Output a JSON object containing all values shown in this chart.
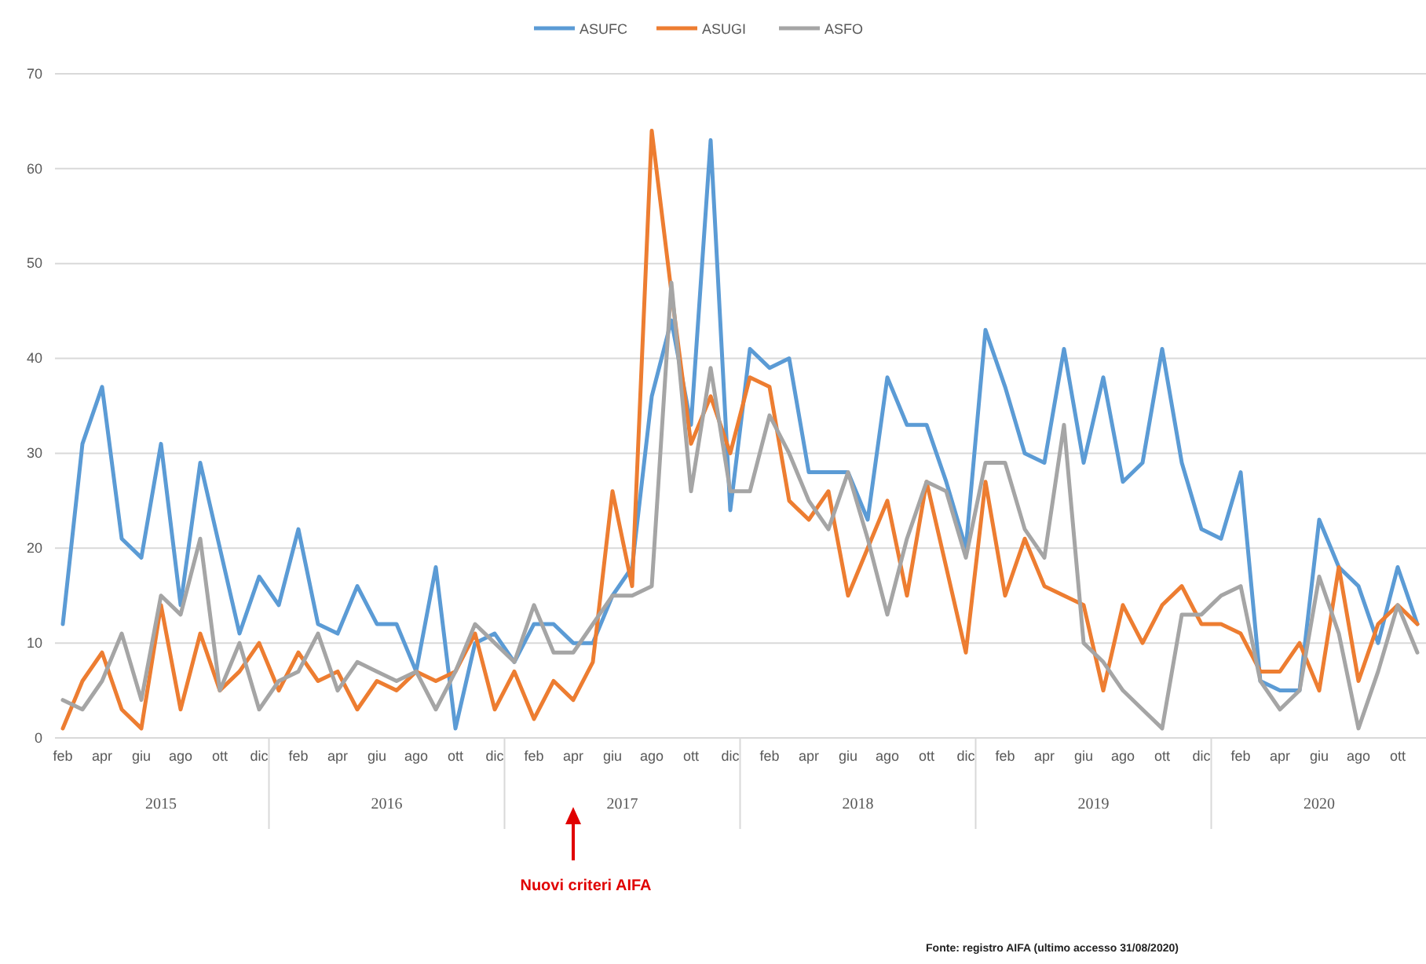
{
  "chart_data": {
    "type": "line",
    "categories": [
      "feb",
      null,
      "apr",
      null,
      "giu",
      null,
      "ago",
      null,
      "ott",
      null,
      "dic",
      null,
      "feb",
      null,
      "apr",
      null,
      "giu",
      null,
      "ago",
      null,
      "ott",
      null,
      "dic",
      null,
      "feb",
      null,
      "apr",
      null,
      "giu",
      null,
      "ago",
      null,
      "ott",
      null,
      "dic",
      null,
      "feb",
      null,
      "apr",
      null,
      "giu",
      null,
      "ago",
      null,
      "ott",
      null,
      "dic",
      null,
      "feb",
      null,
      "apr",
      null,
      "giu",
      null,
      "ago",
      null,
      "ott",
      null,
      "dic",
      null,
      "feb",
      null,
      "apr",
      null,
      "giu",
      null,
      "ago",
      null,
      "ott",
      null
    ],
    "series": [
      {
        "name": "ASUFC",
        "color": "#5b9bd5",
        "values": [
          12,
          31,
          37,
          21,
          19,
          31,
          14,
          29,
          20,
          11,
          17,
          14,
          22,
          12,
          11,
          16,
          12,
          12,
          7,
          18,
          1,
          10,
          11,
          8,
          12,
          12,
          10,
          10,
          15,
          18,
          36,
          44,
          33,
          63,
          24,
          41,
          39,
          40,
          28,
          28,
          28,
          23,
          38,
          33,
          33,
          27,
          20,
          43,
          37,
          30,
          29,
          41,
          29,
          38,
          27,
          29,
          41,
          29,
          22,
          21,
          28,
          6,
          5,
          5,
          23,
          18,
          16,
          10,
          18,
          12
        ]
      },
      {
        "name": "ASUGI",
        "color": "#ed7d31",
        "values": [
          1,
          6,
          9,
          3,
          1,
          14,
          3,
          11,
          5,
          7,
          10,
          5,
          9,
          6,
          7,
          3,
          6,
          5,
          7,
          6,
          7,
          11,
          3,
          7,
          2,
          6,
          4,
          8,
          26,
          16,
          64,
          47,
          31,
          36,
          30,
          38,
          37,
          25,
          23,
          26,
          15,
          20,
          25,
          15,
          27,
          18,
          9,
          27,
          15,
          21,
          16,
          15,
          14,
          5,
          14,
          10,
          14,
          16,
          12,
          12,
          11,
          7,
          7,
          10,
          5,
          18,
          6,
          12,
          14,
          12
        ]
      },
      {
        "name": "ASFO",
        "color": "#a5a5a5",
        "values": [
          4,
          3,
          6,
          11,
          4,
          15,
          13,
          21,
          5,
          10,
          3,
          6,
          7,
          11,
          5,
          8,
          7,
          6,
          7,
          3,
          7,
          12,
          10,
          8,
          14,
          9,
          9,
          12,
          15,
          15,
          16,
          48,
          26,
          39,
          26,
          26,
          34,
          30,
          25,
          22,
          28,
          21,
          13,
          21,
          27,
          26,
          19,
          29,
          29,
          22,
          19,
          33,
          10,
          8,
          5,
          3,
          1,
          13,
          13,
          15,
          16,
          6,
          3,
          5,
          17,
          11,
          1,
          7,
          14,
          9
        ]
      }
    ],
    "ylim": [
      0,
      70
    ],
    "yticks": [
      0,
      10,
      20,
      30,
      40,
      50,
      60,
      70
    ],
    "grid": "y",
    "legend": "top",
    "marker": "none",
    "line_style": "solid",
    "annotations": [
      "2015",
      "2016",
      "2017",
      "2018",
      "2019",
      "2020",
      "Nuovi criteri AIFA",
      "Fonte: registro AIFA (ultimo accesso 31/08/2020)"
    ]
  }
}
